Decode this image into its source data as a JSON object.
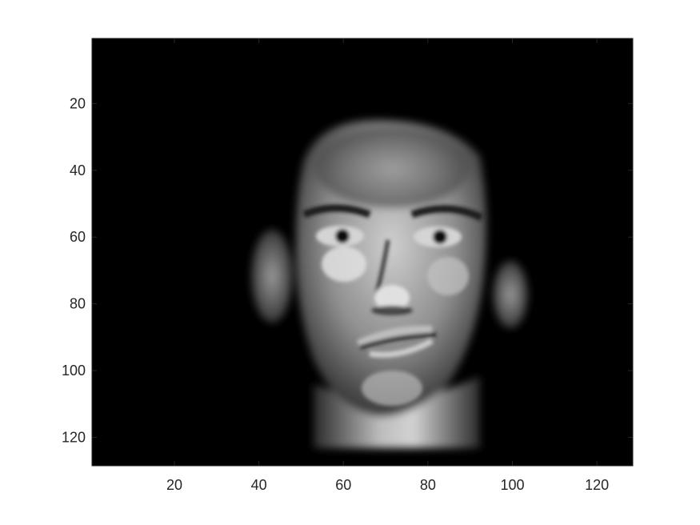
{
  "chart_data": {
    "type": "heatmap",
    "title": "",
    "xlabel": "",
    "ylabel": "",
    "colormap": "gray",
    "image_size": [
      128,
      128
    ],
    "xlim": [
      0.5,
      128.5
    ],
    "ylim": [
      0.5,
      128.5
    ],
    "y_direction": "reverse",
    "grid": false,
    "x_ticks": [
      {
        "value": 20,
        "label": "20"
      },
      {
        "value": 40,
        "label": "40"
      },
      {
        "value": 60,
        "label": "60"
      },
      {
        "value": 80,
        "label": "80"
      },
      {
        "value": 100,
        "label": "100"
      },
      {
        "value": 120,
        "label": "120"
      }
    ],
    "y_ticks": [
      {
        "value": 20,
        "label": "20"
      },
      {
        "value": 40,
        "label": "40"
      },
      {
        "value": 60,
        "label": "60"
      },
      {
        "value": 80,
        "label": "80"
      },
      {
        "value": 100,
        "label": "100"
      },
      {
        "value": 120,
        "label": "120"
      }
    ],
    "colors": {
      "background": "#000000",
      "skin_highlight": "#d6d6d6",
      "skin_mid": "#8c8c8c",
      "shadow": "#1e1e1e",
      "axis": "#262626"
    }
  }
}
